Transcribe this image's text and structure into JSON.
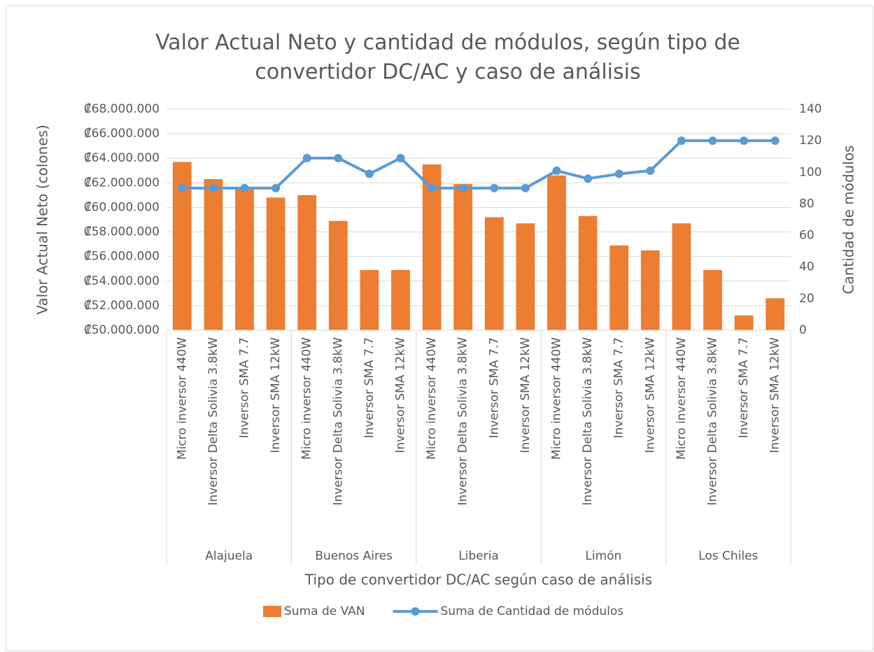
{
  "chart_data": {
    "type": "bar_line",
    "title": [
      "Valor Actual Neto y cantidad de módulos, según tipo de",
      "convertidor DC/AC y caso de análisis"
    ],
    "x_label": "Tipo de convertidor DC/AC según caso de análisis",
    "y_label": "Valor Actual Neto (colones)",
    "y2_label": "Cantidad de módulos",
    "category_groups": [
      "Alajuela",
      "Buenos Aires",
      "Liberia",
      "Limón",
      "Los Chiles"
    ],
    "categories": [
      "Micro inversor 440W",
      "Inversor Delta Solivia 3.8kW",
      "Inversor SMA 7.7",
      "Inversor SMA 12kW",
      "Micro inversor 440W",
      "Inversor Delta Solivia 3.8kW",
      "Inversor SMA 7.7",
      "Inversor SMA 12kW",
      "Micro inversor 440W",
      "Inversor Delta Solivia 3.8kW",
      "Inversor SMA 7.7",
      "Inversor SMA 12kW",
      "Micro inversor 440W",
      "Inversor Delta Solivia 3.8kW",
      "Inversor SMA 7.7",
      "Inversor SMA 12kW",
      "Micro inversor 440W",
      "Inversor Delta Solivia 3.8kW",
      "Inversor SMA 7.7",
      "Inversor SMA 12kW"
    ],
    "series": [
      {
        "name": "Suma de VAN",
        "type": "bar",
        "color": "#ed7d31",
        "values": [
          63700000,
          62300000,
          61500000,
          60800000,
          61000000,
          58900000,
          54900000,
          54900000,
          63500000,
          61900000,
          59200000,
          58700000,
          62600000,
          59300000,
          56900000,
          56500000,
          58700000,
          54900000,
          51200000,
          52600000
        ]
      },
      {
        "name": "Suma de Cantidad de módulos",
        "type": "line",
        "axis": "y2",
        "color": "#5b9bd5",
        "values": [
          90,
          90,
          90,
          90,
          109,
          109,
          99,
          109,
          90,
          90,
          90,
          90,
          101,
          96,
          99,
          101,
          120,
          120,
          120,
          120
        ]
      }
    ],
    "ylim": [
      50000000,
      68000000
    ],
    "yticks": [
      {
        "value": 50000000,
        "label": "₡50.000.000"
      },
      {
        "value": 52000000,
        "label": "₡52.000.000"
      },
      {
        "value": 54000000,
        "label": "₡54.000.000"
      },
      {
        "value": 56000000,
        "label": "₡56.000.000"
      },
      {
        "value": 58000000,
        "label": "₡58.000.000"
      },
      {
        "value": 60000000,
        "label": "₡60.000.000"
      },
      {
        "value": 62000000,
        "label": "₡62.000.000"
      },
      {
        "value": 64000000,
        "label": "₡64.000.000"
      },
      {
        "value": 66000000,
        "label": "₡66.000.000"
      },
      {
        "value": 68000000,
        "label": "₡68.000.000"
      }
    ],
    "y2lim": [
      0,
      140
    ],
    "y2ticks": [
      0,
      20,
      40,
      60,
      80,
      100,
      120,
      140
    ],
    "grid": true,
    "legend": "bottom"
  }
}
